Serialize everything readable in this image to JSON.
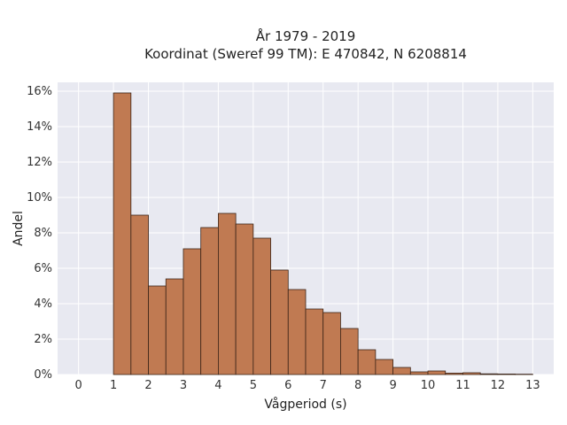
{
  "chart_data": {
    "type": "bar",
    "title": "År 1979 - 2019",
    "subtitle": "Koordinat (Sweref 99 TM): E 470842, N 6208814",
    "xlabel": "Vågperiod (s)",
    "ylabel": "Andel",
    "xlim": [
      -0.6,
      13.6
    ],
    "ylim": [
      0,
      0.165
    ],
    "x_ticks": [
      0,
      1,
      2,
      3,
      4,
      5,
      6,
      7,
      8,
      9,
      10,
      11,
      12,
      13
    ],
    "y_ticks": [
      0,
      0.02,
      0.04,
      0.06,
      0.08,
      0.1,
      0.12,
      0.14,
      0.16
    ],
    "y_tick_labels": [
      "0%",
      "2%",
      "4%",
      "6%",
      "8%",
      "10%",
      "12%",
      "14%",
      "16%"
    ],
    "bin_width": 0.5,
    "bins": [
      {
        "start": 1.0,
        "value": 0.159
      },
      {
        "start": 1.5,
        "value": 0.09
      },
      {
        "start": 2.0,
        "value": 0.05
      },
      {
        "start": 2.5,
        "value": 0.054
      },
      {
        "start": 3.0,
        "value": 0.071
      },
      {
        "start": 3.5,
        "value": 0.083
      },
      {
        "start": 4.0,
        "value": 0.091
      },
      {
        "start": 4.5,
        "value": 0.085
      },
      {
        "start": 5.0,
        "value": 0.077
      },
      {
        "start": 5.5,
        "value": 0.059
      },
      {
        "start": 6.0,
        "value": 0.048
      },
      {
        "start": 6.5,
        "value": 0.037
      },
      {
        "start": 7.0,
        "value": 0.035
      },
      {
        "start": 7.5,
        "value": 0.026
      },
      {
        "start": 8.0,
        "value": 0.014
      },
      {
        "start": 8.5,
        "value": 0.0085
      },
      {
        "start": 9.0,
        "value": 0.004
      },
      {
        "start": 9.5,
        "value": 0.0015
      },
      {
        "start": 10.0,
        "value": 0.002
      },
      {
        "start": 10.5,
        "value": 0.0008
      },
      {
        "start": 11.0,
        "value": 0.001
      },
      {
        "start": 11.5,
        "value": 0.0004
      },
      {
        "start": 12.0,
        "value": 0.0003
      },
      {
        "start": 12.5,
        "value": 0.0002
      }
    ],
    "grid": true,
    "colors": {
      "bar_fill": "#c07a52",
      "bar_edge": "#3b2418",
      "plot_background": "#e8e9f1",
      "grid": "#ffffff"
    }
  }
}
